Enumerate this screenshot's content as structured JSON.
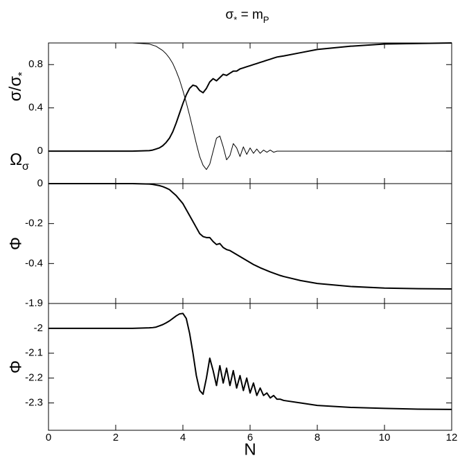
{
  "chart_data": [
    {
      "type": "line",
      "title": [
        "σ",
        "*",
        " = m",
        "P"
      ],
      "ylabels": [
        [
          "σ/σ",
          "*"
        ],
        [
          "Ω",
          "σ"
        ]
      ],
      "x": [
        0,
        1,
        2,
        2.5,
        3.0,
        3.1,
        3.2,
        3.3,
        3.4,
        3.5,
        3.6,
        3.7,
        3.8,
        3.9,
        4.0,
        4.1,
        4.2,
        4.3,
        4.4,
        4.5,
        4.6,
        4.7,
        4.8,
        4.9,
        5.0,
        5.1,
        5.2,
        5.3,
        5.4,
        5.5,
        5.6,
        5.7,
        5.8,
        5.9,
        6.0,
        6.1,
        6.2,
        6.3,
        6.4,
        6.5,
        6.6,
        6.7,
        6.8,
        6.9,
        7.0,
        7.5,
        8,
        9,
        10,
        11,
        12
      ],
      "ylim": [
        -0.3,
        1.0
      ],
      "yticks": [
        0,
        0.4,
        0.8
      ],
      "series": [
        {
          "color": "#000000",
          "line_width": 1,
          "values": [
            1,
            1,
            1,
            1,
            0.99,
            0.98,
            0.97,
            0.95,
            0.93,
            0.9,
            0.86,
            0.81,
            0.74,
            0.66,
            0.56,
            0.45,
            0.33,
            0.2,
            0.07,
            -0.05,
            -0.13,
            -0.17,
            -0.12,
            0.0,
            0.12,
            0.14,
            0.04,
            -0.08,
            -0.04,
            0.07,
            0.03,
            -0.05,
            0.04,
            -0.03,
            0.03,
            -0.02,
            0.02,
            -0.02,
            0.01,
            -0.01,
            0.01,
            -0.01,
            0,
            0,
            0,
            0,
            0,
            0,
            0,
            0,
            0
          ]
        },
        {
          "color": "#000000",
          "line_width": 2,
          "values": [
            0,
            0,
            0,
            0,
            0.005,
            0.01,
            0.02,
            0.03,
            0.05,
            0.08,
            0.12,
            0.18,
            0.26,
            0.35,
            0.44,
            0.52,
            0.58,
            0.61,
            0.6,
            0.56,
            0.54,
            0.58,
            0.64,
            0.67,
            0.65,
            0.68,
            0.71,
            0.7,
            0.72,
            0.74,
            0.74,
            0.76,
            0.77,
            0.78,
            0.79,
            0.8,
            0.81,
            0.82,
            0.83,
            0.84,
            0.85,
            0.86,
            0.87,
            0.875,
            0.88,
            0.91,
            0.94,
            0.97,
            0.99,
            0.995,
            1
          ]
        }
      ]
    },
    {
      "type": "line",
      "ylabel": "Φ",
      "x": [
        0,
        1,
        2,
        2.5,
        3.0,
        3.1,
        3.2,
        3.3,
        3.4,
        3.5,
        3.6,
        3.7,
        3.8,
        3.9,
        4.0,
        4.1,
        4.2,
        4.3,
        4.4,
        4.5,
        4.6,
        4.7,
        4.8,
        4.9,
        5.0,
        5.1,
        5.2,
        5.3,
        5.4,
        5.5,
        5.6,
        5.7,
        5.8,
        5.9,
        6.0,
        6.1,
        6.2,
        6.3,
        6.4,
        6.5,
        6.6,
        6.7,
        6.8,
        6.9,
        7.0,
        7.5,
        8,
        9,
        10,
        11,
        12
      ],
      "ylim": [
        -0.6,
        0
      ],
      "yticks": [
        -0.4,
        -0.2,
        0
      ],
      "series": [
        {
          "color": "#000000",
          "line_width": 2,
          "values": [
            0,
            0,
            0,
            0,
            -0.002,
            -0.004,
            -0.007,
            -0.01,
            -0.015,
            -0.022,
            -0.03,
            -0.045,
            -0.06,
            -0.08,
            -0.1,
            -0.13,
            -0.16,
            -0.19,
            -0.22,
            -0.25,
            -0.265,
            -0.27,
            -0.27,
            -0.29,
            -0.305,
            -0.3,
            -0.32,
            -0.33,
            -0.335,
            -0.345,
            -0.355,
            -0.365,
            -0.375,
            -0.385,
            -0.395,
            -0.405,
            -0.413,
            -0.421,
            -0.428,
            -0.435,
            -0.442,
            -0.448,
            -0.454,
            -0.46,
            -0.465,
            -0.485,
            -0.5,
            -0.515,
            -0.523,
            -0.526,
            -0.527
          ]
        }
      ]
    },
    {
      "type": "line",
      "ylabel": "Φ",
      "xlabel": "N",
      "x": [
        0,
        1,
        2,
        2.5,
        3.0,
        3.1,
        3.2,
        3.3,
        3.4,
        3.5,
        3.6,
        3.7,
        3.8,
        3.9,
        4.0,
        4.1,
        4.2,
        4.3,
        4.4,
        4.5,
        4.6,
        4.7,
        4.8,
        4.9,
        5.0,
        5.1,
        5.2,
        5.3,
        5.4,
        5.5,
        5.6,
        5.7,
        5.8,
        5.9,
        6.0,
        6.1,
        6.2,
        6.3,
        6.4,
        6.5,
        6.6,
        6.7,
        6.8,
        6.9,
        7.0,
        7.5,
        8,
        9,
        10,
        11,
        12
      ],
      "xlim": [
        0,
        12
      ],
      "xticks": [
        0,
        2,
        4,
        6,
        8,
        10,
        12
      ],
      "ylim": [
        -2.41,
        -1.9
      ],
      "yticks": [
        -2.3,
        -2.2,
        -2.1,
        -2,
        -1.9
      ],
      "series": [
        {
          "color": "#000000",
          "line_width": 2,
          "values": [
            -2,
            -2,
            -2,
            -2,
            -1.998,
            -1.997,
            -1.995,
            -1.99,
            -1.985,
            -1.978,
            -1.97,
            -1.96,
            -1.95,
            -1.942,
            -1.94,
            -1.96,
            -2.02,
            -2.1,
            -2.19,
            -2.25,
            -2.265,
            -2.2,
            -2.12,
            -2.17,
            -2.23,
            -2.15,
            -2.22,
            -2.16,
            -2.23,
            -2.17,
            -2.24,
            -2.19,
            -2.25,
            -2.2,
            -2.26,
            -2.22,
            -2.27,
            -2.24,
            -2.27,
            -2.26,
            -2.28,
            -2.27,
            -2.285,
            -2.285,
            -2.29,
            -2.3,
            -2.31,
            -2.318,
            -2.322,
            -2.325,
            -2.326
          ]
        }
      ]
    }
  ]
}
